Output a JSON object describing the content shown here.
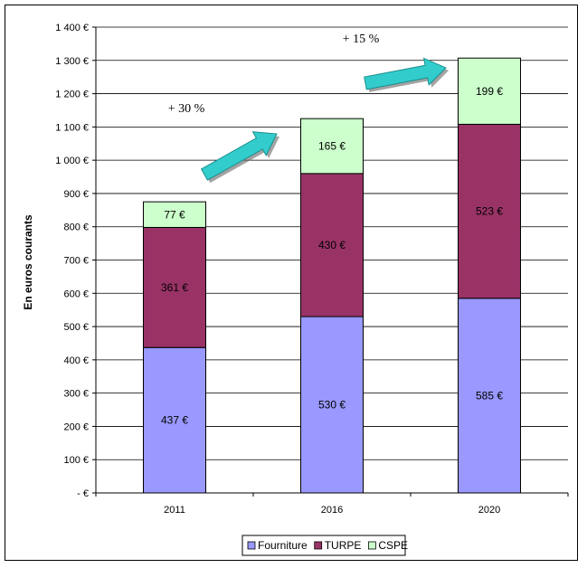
{
  "chart_data": {
    "type": "bar",
    "stacked": true,
    "categories": [
      "2011",
      "2016",
      "2020"
    ],
    "series": [
      {
        "name": "Fourniture",
        "values": [
          437,
          530,
          585
        ],
        "labels": [
          "437 €",
          "530 €",
          "585 €"
        ],
        "color": "#9999ff"
      },
      {
        "name": "TURPE",
        "values": [
          361,
          430,
          523
        ],
        "labels": [
          "361 €",
          "430 €",
          "523 €"
        ],
        "color": "#993366"
      },
      {
        "name": "CSPE",
        "values": [
          77,
          165,
          199
        ],
        "labels": [
          "77 €",
          "165 €",
          "199 €"
        ],
        "color": "#ccffcc"
      }
    ],
    "ylabel": "En euros courants",
    "ylim": [
      0,
      1400
    ],
    "yticks": [
      0,
      100,
      200,
      300,
      400,
      500,
      600,
      700,
      800,
      900,
      1000,
      1100,
      1200,
      1300,
      1400
    ],
    "ytick_labels": [
      "- €",
      "100 €",
      "200 €",
      "300 €",
      "400 €",
      "500 €",
      "600 €",
      "700 €",
      "800 €",
      "900 €",
      "1 000 €",
      "1 100 €",
      "1 200 €",
      "1 300 €",
      "1 400 €"
    ],
    "grid": true,
    "legend_position": "bottom",
    "annotations": [
      {
        "text": "+ 30 %",
        "between": [
          "2011",
          "2016"
        ]
      },
      {
        "text": "+ 15 %",
        "between": [
          "2016",
          "2020"
        ]
      }
    ],
    "arrow_color": "#33cccc"
  }
}
